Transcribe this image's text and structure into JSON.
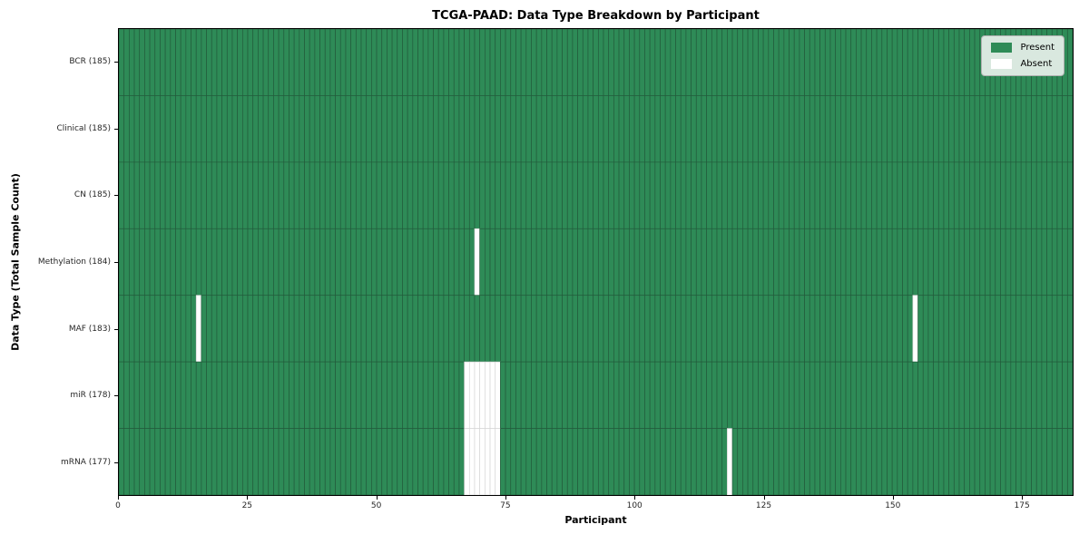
{
  "chart_data": {
    "type": "heatmap",
    "title": "TCGA-PAAD: Data Type Breakdown by Participant",
    "xlabel": "Participant",
    "ylabel": "Data Type (Total Sample Count)",
    "n_participants": 185,
    "x_ticks": [
      0,
      25,
      50,
      75,
      100,
      125,
      150,
      175
    ],
    "rows": [
      {
        "label": "BCR (185)",
        "total": 185,
        "absent_participants": []
      },
      {
        "label": "Clinical (185)",
        "total": 185,
        "absent_participants": []
      },
      {
        "label": "CN (185)",
        "total": 185,
        "absent_participants": []
      },
      {
        "label": "Methylation (184)",
        "total": 184,
        "absent_participants": [
          69
        ]
      },
      {
        "label": "MAF (183)",
        "total": 183,
        "absent_participants": [
          15,
          154
        ]
      },
      {
        "label": "miR (178)",
        "total": 178,
        "absent_participants": [
          67,
          68,
          69,
          70,
          71,
          72,
          73
        ]
      },
      {
        "label": "mRNA (177)",
        "total": 177,
        "absent_participants": [
          67,
          68,
          69,
          70,
          71,
          72,
          73,
          118
        ]
      }
    ],
    "legend": [
      {
        "label": "Present",
        "color": "#2e8b57"
      },
      {
        "label": "Absent",
        "color": "#ffffff"
      }
    ],
    "colors": {
      "present": "#2e8b57",
      "absent": "#ffffff",
      "present_edge": "#235c3c",
      "absent_edge": "#d6d6d6",
      "axis_text": "#262626"
    },
    "legend_position": "upper right",
    "grid": "cell-edges"
  }
}
